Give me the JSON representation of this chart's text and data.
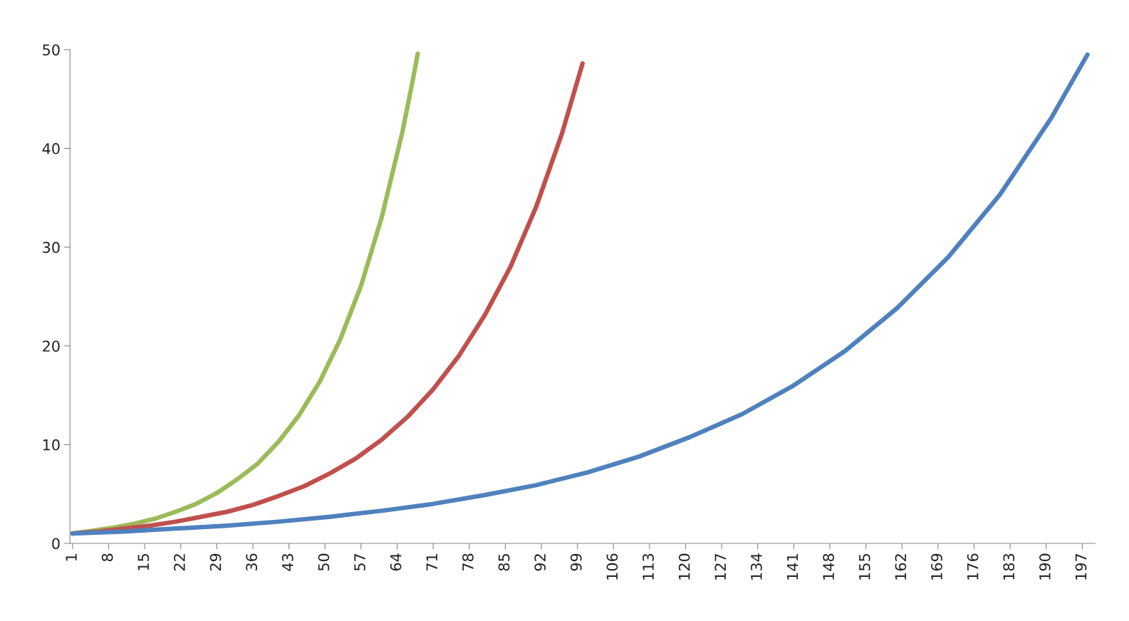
{
  "chart_data": {
    "type": "line",
    "xlim": [
      0.5,
      199.5
    ],
    "ylim": [
      0,
      50
    ],
    "xticks": [
      1,
      8,
      15,
      22,
      29,
      36,
      43,
      50,
      57,
      64,
      71,
      78,
      85,
      92,
      99,
      106,
      113,
      120,
      127,
      134,
      141,
      148,
      155,
      162,
      169,
      176,
      183,
      190,
      197
    ],
    "yticks": [
      0,
      10,
      20,
      30,
      40,
      50
    ],
    "grid": false,
    "legend": false,
    "marker": "none",
    "line_style": "solid",
    "series": [
      {
        "color": "#9bbb59",
        "x": [
          1,
          5,
          9,
          13,
          17,
          21,
          25,
          29,
          33,
          37,
          41,
          45,
          49,
          53,
          57,
          61,
          65,
          67,
          68
        ],
        "values": [
          1.0,
          1.3,
          1.6,
          2.0,
          2.5,
          3.2,
          4.0,
          5.1,
          6.5,
          8.1,
          10.3,
          13.0,
          16.4,
          20.7,
          26.1,
          33.0,
          41.6,
          46.8,
          49.6
        ]
      },
      {
        "color": "#c0504d",
        "x": [
          1,
          6,
          11,
          16,
          21,
          26,
          31,
          36,
          41,
          46,
          51,
          56,
          61,
          66,
          71,
          76,
          81,
          86,
          91,
          96,
          100
        ],
        "values": [
          1.0,
          1.2,
          1.5,
          1.8,
          2.2,
          2.7,
          3.2,
          3.9,
          4.8,
          5.8,
          7.1,
          8.6,
          10.5,
          12.8,
          15.6,
          19.0,
          23.1,
          28.0,
          34.1,
          41.5,
          48.6
        ]
      },
      {
        "color": "#4f81bd",
        "x": [
          1,
          11,
          21,
          31,
          41,
          51,
          61,
          71,
          81,
          91,
          101,
          111,
          121,
          131,
          141,
          151,
          161,
          171,
          181,
          191,
          198
        ],
        "values": [
          1.0,
          1.2,
          1.5,
          1.8,
          2.2,
          2.7,
          3.3,
          4.0,
          4.9,
          5.9,
          7.2,
          8.8,
          10.8,
          13.1,
          16.0,
          19.5,
          23.8,
          29.0,
          35.3,
          43.1,
          49.5
        ]
      }
    ]
  }
}
